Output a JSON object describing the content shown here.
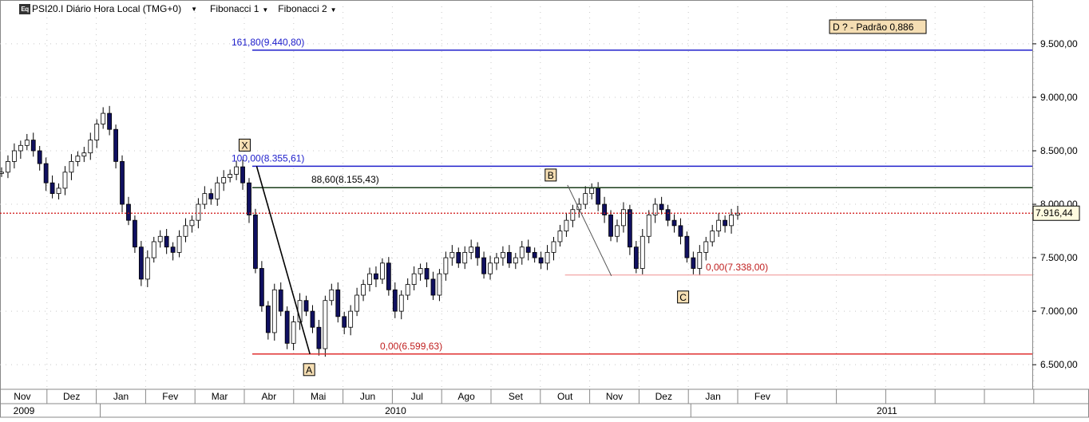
{
  "header": {
    "symbol_title": "PSI20.I Diário Hora Local (TMG+0)",
    "logo_text": "Eq",
    "indicators": [
      {
        "label": "Fibonacci 1"
      },
      {
        "label": "Fibonacci 2"
      }
    ]
  },
  "colors": {
    "fib1": "#2020cc",
    "fib2_level": "#1a3d1a",
    "fib_base": "#e03030",
    "last_price": "#d01010",
    "pattern": "#000000",
    "label_bg": "#f5deb3",
    "grid": "#c8c8c8"
  },
  "chart_data": {
    "type": "candlestick",
    "instrument": "PSI20.I",
    "y_axis": {
      "ticks": [
        6500,
        7000,
        7500,
        8000,
        8500,
        9000,
        9500
      ],
      "tick_labels": [
        "6.500,00",
        "7.000,00",
        "7.500,00",
        "8.000,00",
        "8.500,00",
        "9.000,00",
        "9.500,00"
      ],
      "range": [
        6270,
        9850
      ]
    },
    "x_axis": {
      "months": [
        "Nov",
        "Dez",
        "Jan",
        "Fev",
        "Mar",
        "Abr",
        "Mai",
        "Jun",
        "Jul",
        "Ago",
        "Set",
        "Out",
        "Nov",
        "Dez",
        "Jan",
        "Fev",
        "",
        "",
        "",
        "",
        "",
        ""
      ],
      "years": [
        "2009",
        "2010",
        "2011"
      ]
    },
    "last_price": {
      "value": 7916.44,
      "label": "7.916,44"
    },
    "fib_levels": [
      {
        "value": 9440.8,
        "label": "161,80(9.440,80)",
        "group": "fib1",
        "from_month": 5
      },
      {
        "value": 8355.61,
        "label": "100,00(8.355,61)",
        "group": "fib1",
        "from_month": 5
      },
      {
        "value": 8155.43,
        "label": "88,60(8.155,43)",
        "group": "fib2_level",
        "from_month": 5
      },
      {
        "value": 6599.63,
        "label": "0,00(6.599,63)",
        "group": "fib_base",
        "from_month": 5
      },
      {
        "value": 7338.0,
        "label": "0,00(7.338,00)",
        "group": "fib_base_light",
        "from_month": 11.5
      }
    ],
    "pattern_points": [
      {
        "label": "X",
        "month": 5.25,
        "value": 8355.61
      },
      {
        "label": "A",
        "month": 6.33,
        "value": 6599.63
      },
      {
        "label": "B",
        "month": 11.55,
        "value": 8180
      },
      {
        "label": "C",
        "month": 13.78,
        "value": 7338
      }
    ],
    "pattern_label": "D ? - Padrão 0,886",
    "series": [
      {
        "values": [
          8300,
          8400,
          8500,
          8550,
          8600,
          8500,
          8380,
          8200,
          8100,
          8150,
          8300,
          8400,
          8450,
          8480,
          8600,
          8750,
          8850,
          8700,
          8400,
          8000,
          7850,
          7600,
          7300,
          7500,
          7650,
          7700,
          7600,
          7550,
          7700,
          7800,
          7850,
          8000,
          8100,
          8050,
          8200,
          8250,
          8280,
          8350,
          8200,
          7900,
          7400,
          7050,
          6800,
          7200,
          7000,
          6700,
          6900,
          7100,
          7000,
          6850,
          6650,
          7100,
          7200,
          6950,
          6850,
          7000,
          7150,
          7250,
          7350,
          7300,
          7450,
          7200,
          7000,
          7150,
          7250,
          7350,
          7400,
          7300,
          7150,
          7350,
          7500,
          7550,
          7450,
          7550,
          7600,
          7500,
          7350,
          7450,
          7500,
          7550,
          7450,
          7500,
          7600,
          7550,
          7500,
          7450,
          7550,
          7650,
          7750,
          7850,
          7950,
          8000,
          8100,
          8150,
          8000,
          7900,
          7700,
          7800,
          7950,
          7600,
          7400,
          7700,
          7900,
          8000,
          7950,
          7850,
          7800,
          7700,
          7500,
          7400,
          7550,
          7650,
          7750,
          7850,
          7800,
          7900,
          7916
        ]
      }
    ]
  }
}
